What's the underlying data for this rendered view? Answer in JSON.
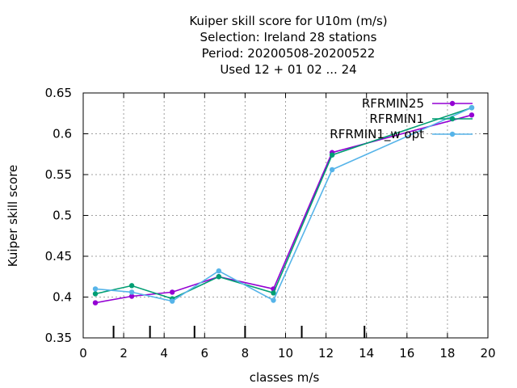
{
  "chart_data": {
    "type": "line",
    "title_lines": [
      "Kuiper skill score  for U10m (m/s)",
      "Selection: Ireland     28 stations",
      "Period: 20200508-20200522",
      "Used  12 + 01 02 ... 24"
    ],
    "xlabel": "classes m/s",
    "ylabel": "Kuiper skill score",
    "xlim": [
      0,
      20
    ],
    "ylim": [
      0.35,
      0.65
    ],
    "x_ticks": [
      0,
      2,
      4,
      6,
      8,
      10,
      12,
      14,
      16,
      18,
      20
    ],
    "y_ticks": [
      0.35,
      0.4,
      0.45,
      0.5,
      0.55,
      0.6,
      0.65
    ],
    "grid": true,
    "legend_position": "top-right",
    "class_boundaries": [
      1.5,
      3.3,
      5.5,
      8.0,
      10.8,
      13.9
    ],
    "series": [
      {
        "name": "RFRMIN25",
        "color": "#9400d3",
        "x": [
          0.6,
          2.4,
          4.4,
          6.7,
          9.4,
          12.3,
          19.2
        ],
        "y": [
          0.393,
          0.401,
          0.406,
          0.425,
          0.41,
          0.577,
          0.623
        ]
      },
      {
        "name": "RFRMIN1",
        "color": "#009e73",
        "x": [
          0.6,
          2.4,
          4.4,
          6.7,
          9.4,
          12.3,
          19.2
        ],
        "y": [
          0.404,
          0.414,
          0.398,
          0.425,
          0.405,
          0.574,
          0.632
        ]
      },
      {
        "name": "RFRMIN1_w opt",
        "color": "#56b4e9",
        "x": [
          0.6,
          2.4,
          4.4,
          6.7,
          9.4,
          12.3,
          19.2
        ],
        "y": [
          0.41,
          0.406,
          0.395,
          0.432,
          0.396,
          0.556,
          0.632
        ]
      }
    ]
  }
}
